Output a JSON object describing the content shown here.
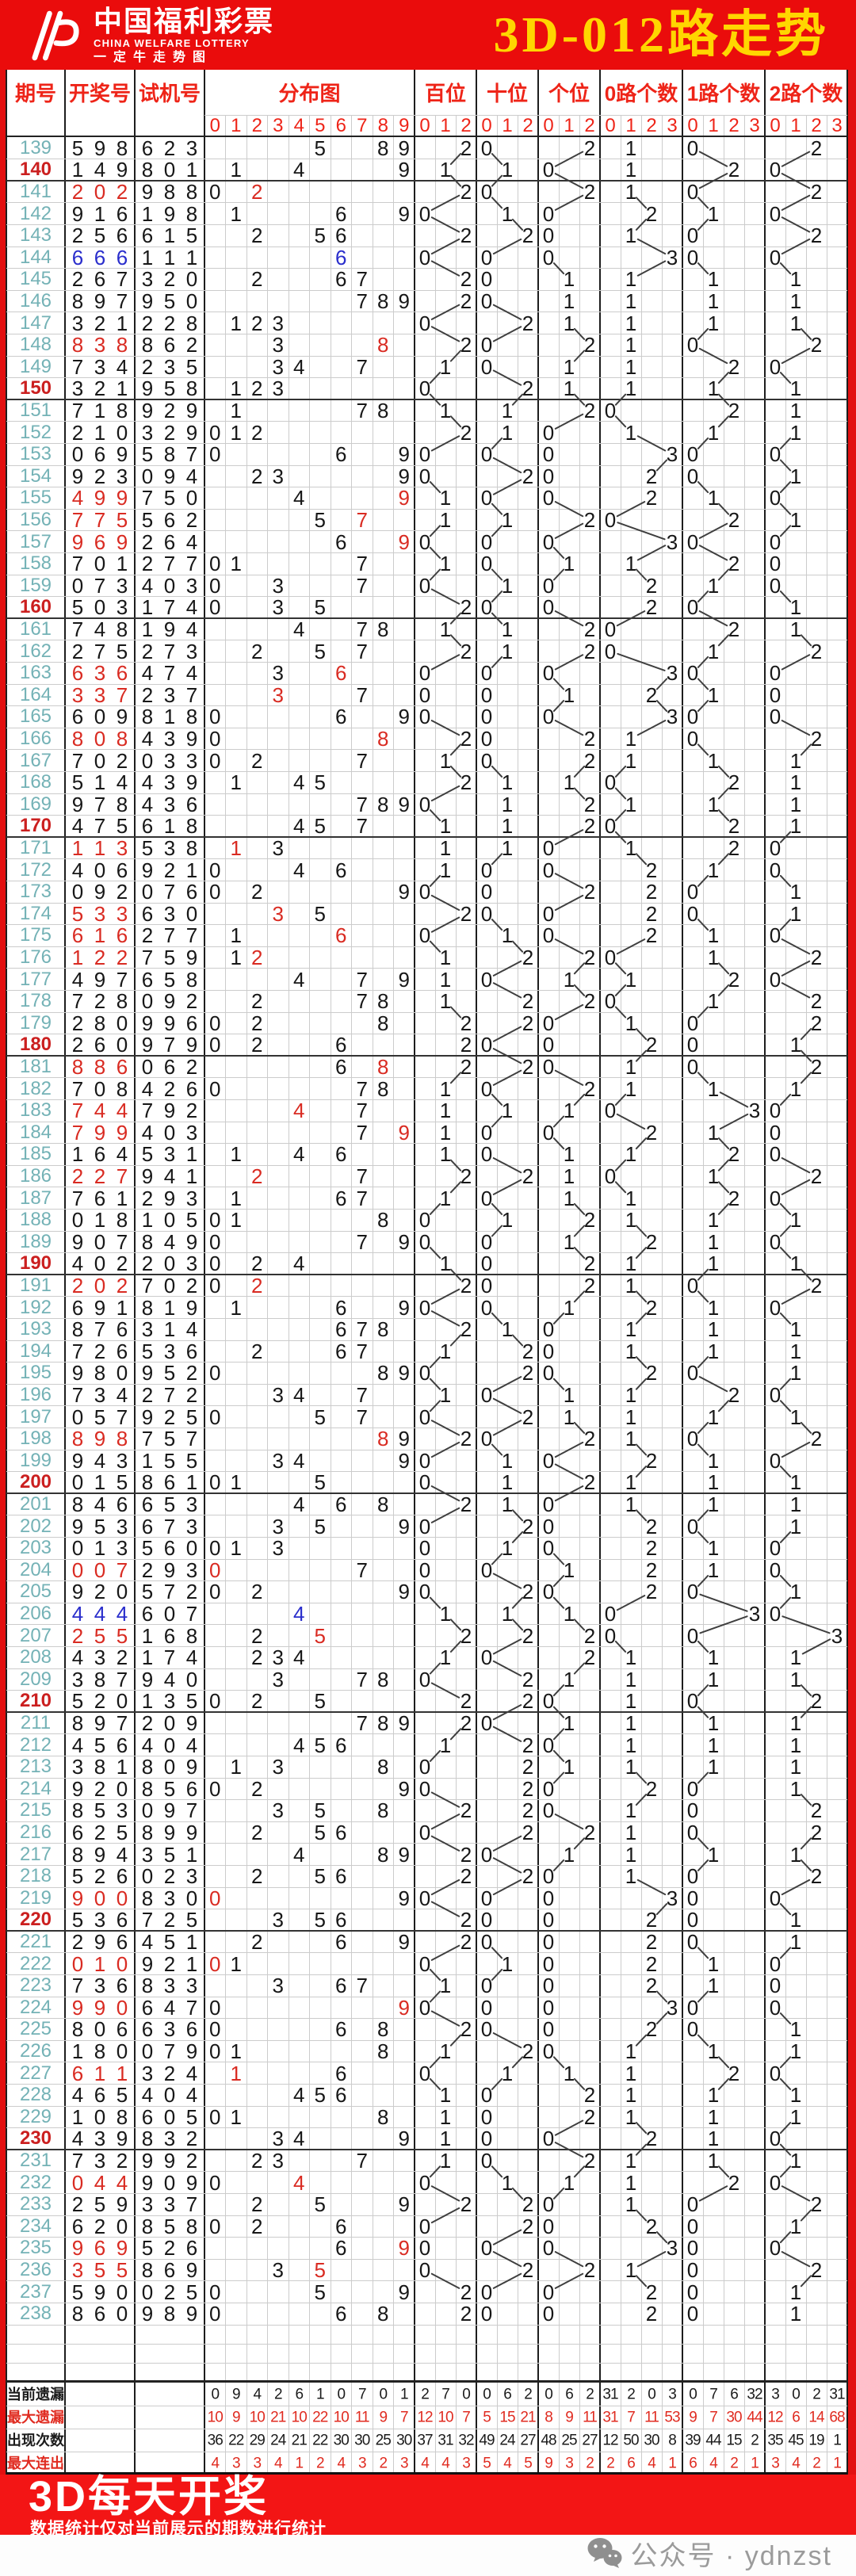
{
  "header": {
    "logo_title": "中国福利彩票",
    "logo_subtitle": "CHINA WELFARE LOTTERY",
    "logo_tagline": "一定牛走势图",
    "title": "3D-012路走势"
  },
  "chart_data": {
    "type": "table",
    "title": "3D-012路走势",
    "columns": {
      "period": "期号",
      "win": "开奖号",
      "test": "试机号",
      "dist": "分布图",
      "hundreds": "百位",
      "tens": "十位",
      "units": "个位",
      "road0": "0路个数",
      "road1": "1路个数",
      "road2": "2路个数"
    },
    "sub_digits": {
      "dist": [
        "0",
        "1",
        "2",
        "3",
        "4",
        "5",
        "6",
        "7",
        "8",
        "9"
      ],
      "road": [
        "0",
        "1",
        "2"
      ],
      "count": [
        "0",
        "1",
        "2",
        "3"
      ]
    },
    "rows": [
      [
        "139",
        "598",
        "623"
      ],
      [
        "140",
        "149",
        "801"
      ],
      [
        "141",
        "202",
        "988"
      ],
      [
        "142",
        "916",
        "198"
      ],
      [
        "143",
        "256",
        "615"
      ],
      [
        "144",
        "666",
        "111"
      ],
      [
        "145",
        "267",
        "320"
      ],
      [
        "146",
        "897",
        "950"
      ],
      [
        "147",
        "321",
        "228"
      ],
      [
        "148",
        "838",
        "862"
      ],
      [
        "149",
        "734",
        "235"
      ],
      [
        "150",
        "321",
        "958"
      ],
      [
        "151",
        "718",
        "929"
      ],
      [
        "152",
        "210",
        "329"
      ],
      [
        "153",
        "069",
        "587"
      ],
      [
        "154",
        "923",
        "094"
      ],
      [
        "155",
        "499",
        "750"
      ],
      [
        "156",
        "775",
        "562"
      ],
      [
        "157",
        "969",
        "264"
      ],
      [
        "158",
        "701",
        "277"
      ],
      [
        "159",
        "073",
        "403"
      ],
      [
        "160",
        "503",
        "174"
      ],
      [
        "161",
        "748",
        "194"
      ],
      [
        "162",
        "275",
        "273"
      ],
      [
        "163",
        "636",
        "474"
      ],
      [
        "164",
        "337",
        "237"
      ],
      [
        "165",
        "609",
        "818"
      ],
      [
        "166",
        "808",
        "439"
      ],
      [
        "167",
        "702",
        "033"
      ],
      [
        "168",
        "514",
        "439"
      ],
      [
        "169",
        "978",
        "436"
      ],
      [
        "170",
        "475",
        "618"
      ],
      [
        "171",
        "113",
        "538"
      ],
      [
        "172",
        "406",
        "921"
      ],
      [
        "173",
        "092",
        "076"
      ],
      [
        "174",
        "533",
        "630"
      ],
      [
        "175",
        "616",
        "277"
      ],
      [
        "176",
        "122",
        "759"
      ],
      [
        "177",
        "497",
        "658"
      ],
      [
        "178",
        "728",
        "092"
      ],
      [
        "179",
        "280",
        "996"
      ],
      [
        "180",
        "260",
        "979"
      ],
      [
        "181",
        "886",
        "062"
      ],
      [
        "182",
        "708",
        "426"
      ],
      [
        "183",
        "744",
        "792"
      ],
      [
        "184",
        "799",
        "403"
      ],
      [
        "185",
        "164",
        "531"
      ],
      [
        "186",
        "227",
        "941"
      ],
      [
        "187",
        "761",
        "293"
      ],
      [
        "188",
        "018",
        "105"
      ],
      [
        "189",
        "907",
        "849"
      ],
      [
        "190",
        "402",
        "203"
      ],
      [
        "191",
        "202",
        "702"
      ],
      [
        "192",
        "691",
        "819"
      ],
      [
        "193",
        "876",
        "314"
      ],
      [
        "194",
        "726",
        "536"
      ],
      [
        "195",
        "980",
        "952"
      ],
      [
        "196",
        "734",
        "272"
      ],
      [
        "197",
        "057",
        "925"
      ],
      [
        "198",
        "898",
        "757"
      ],
      [
        "199",
        "943",
        "155"
      ],
      [
        "200",
        "015",
        "861"
      ],
      [
        "201",
        "846",
        "653"
      ],
      [
        "202",
        "953",
        "673"
      ],
      [
        "203",
        "013",
        "560"
      ],
      [
        "204",
        "007",
        "293"
      ],
      [
        "205",
        "920",
        "572"
      ],
      [
        "206",
        "444",
        "607"
      ],
      [
        "207",
        "255",
        "168"
      ],
      [
        "208",
        "432",
        "174"
      ],
      [
        "209",
        "387",
        "940"
      ],
      [
        "210",
        "520",
        "135"
      ],
      [
        "211",
        "897",
        "209"
      ],
      [
        "212",
        "456",
        "404"
      ],
      [
        "213",
        "381",
        "809"
      ],
      [
        "214",
        "920",
        "856"
      ],
      [
        "215",
        "853",
        "097"
      ],
      [
        "216",
        "625",
        "899"
      ],
      [
        "217",
        "894",
        "351"
      ],
      [
        "218",
        "526",
        "023"
      ],
      [
        "219",
        "900",
        "830"
      ],
      [
        "220",
        "536",
        "725"
      ],
      [
        "221",
        "296",
        "451"
      ],
      [
        "222",
        "010",
        "921"
      ],
      [
        "223",
        "736",
        "833"
      ],
      [
        "224",
        "990",
        "647"
      ],
      [
        "225",
        "806",
        "636"
      ],
      [
        "226",
        "180",
        "079"
      ],
      [
        "227",
        "611",
        "324"
      ],
      [
        "228",
        "465",
        "404"
      ],
      [
        "229",
        "108",
        "605"
      ],
      [
        "230",
        "439",
        "832"
      ],
      [
        "231",
        "732",
        "992"
      ],
      [
        "232",
        "044",
        "909"
      ],
      [
        "233",
        "259",
        "337"
      ],
      [
        "234",
        "620",
        "858"
      ],
      [
        "235",
        "969",
        "526"
      ],
      [
        "236",
        "355",
        "869"
      ],
      [
        "237",
        "590",
        "025"
      ],
      [
        "238",
        "860",
        "989"
      ]
    ],
    "stats": [
      {
        "label": "当前遗漏",
        "color": "#1b1b1b",
        "values": [
          0,
          9,
          4,
          2,
          6,
          1,
          0,
          7,
          0,
          1,
          2,
          7,
          0,
          0,
          6,
          2,
          0,
          6,
          2,
          31,
          2,
          0,
          3,
          0,
          7,
          6,
          32,
          3,
          0,
          2,
          31
        ]
      },
      {
        "label": "最大遗漏",
        "color": "#e02b20",
        "values": [
          10,
          9,
          10,
          21,
          10,
          22,
          10,
          11,
          9,
          7,
          12,
          10,
          7,
          5,
          15,
          21,
          8,
          9,
          11,
          31,
          7,
          11,
          53,
          9,
          7,
          30,
          44,
          12,
          6,
          14,
          68
        ]
      },
      {
        "label": "出现次数",
        "color": "#1b1b1b",
        "values": [
          36,
          22,
          29,
          24,
          21,
          22,
          30,
          30,
          25,
          30,
          37,
          31,
          32,
          49,
          24,
          27,
          48,
          25,
          27,
          12,
          50,
          30,
          8,
          39,
          44,
          15,
          2,
          35,
          45,
          19,
          1
        ]
      },
      {
        "label": "最大连出",
        "color": "#e02b20",
        "values": [
          4,
          3,
          3,
          4,
          1,
          2,
          4,
          3,
          2,
          3,
          4,
          4,
          3,
          5,
          4,
          5,
          9,
          3,
          2,
          2,
          6,
          4,
          1,
          6,
          4,
          2,
          1,
          3,
          4,
          2,
          1
        ]
      }
    ]
  },
  "footer": {
    "banner": "3D每天开奖",
    "disclaimer": "数据统计仅对当前展示的期数进行统计",
    "wechat_label": "公众号 · ydnzst"
  },
  "colors": {
    "banner_red": "#ea0c0c",
    "footer_red": "#f31515",
    "side_red": "#e21010",
    "title_yellow": "#ffd600",
    "header_red": "#ee2418",
    "period_teal": "#74b2b6",
    "period_red": "#cb1f1f",
    "number_black": "#171717",
    "double_red": "#d92b22",
    "triple_blue": "#2a2ecc",
    "grid_gray": "#cccccc",
    "major_line": "#1d1d1d",
    "zigzag_line": "#3f3f3f"
  }
}
